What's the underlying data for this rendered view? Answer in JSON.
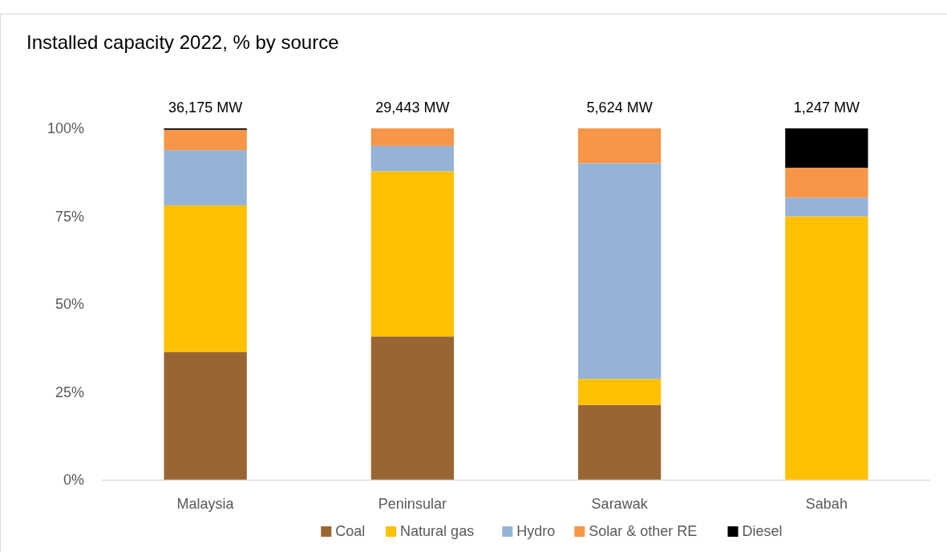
{
  "chart_data": {
    "type": "bar",
    "title": "Installed capacity 2022, % by source",
    "stacked": true,
    "categories": [
      "Malaysia",
      "Peninsular",
      "Sarawak",
      "Sabah"
    ],
    "series": [
      {
        "name": "Coal",
        "color": "#996633",
        "values": [
          36.4,
          40.8,
          21.3,
          0
        ]
      },
      {
        "name": "Natural gas",
        "color": "#ffc000",
        "values": [
          41.7,
          47.0,
          7.4,
          75.0
        ]
      },
      {
        "name": "Hydro",
        "color": "#95b3d7",
        "values": [
          15.7,
          7.2,
          61.4,
          5.3
        ]
      },
      {
        "name": "Solar & other RE",
        "color": "#f79646",
        "values": [
          5.8,
          5.0,
          9.9,
          8.5
        ]
      },
      {
        "name": "Diesel",
        "color": "#000000",
        "values": [
          0.4,
          0,
          0,
          11.2
        ]
      }
    ],
    "ylim": [
      0,
      100
    ],
    "yticks": [
      {
        "value": 0,
        "label": "0%"
      },
      {
        "value": 25,
        "label": "25%"
      },
      {
        "value": 50,
        "label": "50%"
      },
      {
        "value": 75,
        "label": "75%"
      },
      {
        "value": 100,
        "label": "100%"
      }
    ],
    "annotations": [
      {
        "text": "36,175 MW",
        "x": "Malaysia",
        "y": 100
      },
      {
        "text": "29,443 MW",
        "x": "Peninsular",
        "y": 100
      },
      {
        "text": "5,624 MW",
        "x": "Sarawak",
        "y": 100
      },
      {
        "text": "1,247 MW",
        "x": "Sabah",
        "y": 100
      }
    ],
    "legend": "bottom",
    "grid": false
  }
}
